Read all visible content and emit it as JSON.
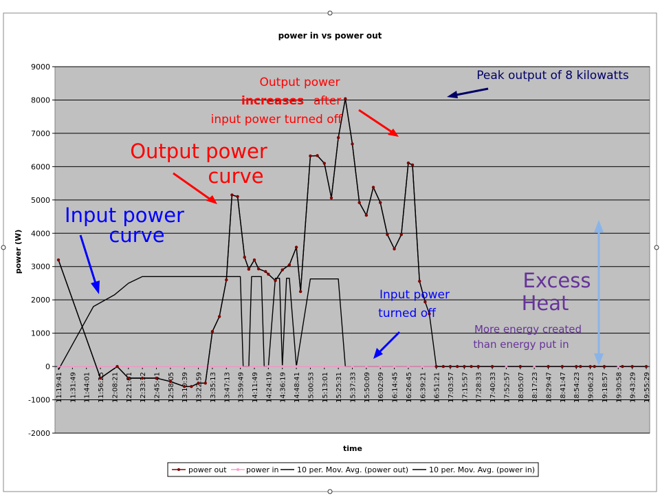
{
  "chart_data": {
    "type": "line",
    "title": "power in vs power out",
    "xlabel": "time",
    "ylabel": "power (W)",
    "ylim": [
      -2000,
      9000
    ],
    "yticks": [
      -2000,
      -1000,
      0,
      1000,
      2000,
      3000,
      4000,
      5000,
      6000,
      7000,
      8000,
      9000
    ],
    "grid": true,
    "legend_position": "bottom",
    "x_tick_labels": [
      "11:19:41",
      "11:31:49",
      "11:44:01",
      "11:56:25",
      "12:08:21",
      "12:21:01",
      "12:33:12",
      "12:45:41",
      "12:58:05",
      "13:10:39",
      "13:22:59",
      "13:35:13",
      "13:47:13",
      "13:59:49",
      "14:11:49",
      "14:24:19",
      "14:36:19",
      "14:48:41",
      "15:00:53",
      "15:13:01",
      "15:25:31",
      "15:37:33",
      "15:50:09",
      "16:02:09",
      "16:14:45",
      "16:26:45",
      "16:39:21",
      "16:51:21",
      "17:03:57",
      "17:15:57",
      "17:28:33",
      "17:40:33",
      "17:52:57",
      "18:05:07",
      "18:17:23",
      "18:29:47",
      "18:41:47",
      "18:54:23",
      "19:06:23",
      "19:18:57",
      "19:30:58",
      "19:43:29",
      "19:55:29"
    ],
    "series": [
      {
        "name": "power out",
        "color": "#800000",
        "marker": "circle",
        "x": [
          0,
          3,
          4.2,
          5,
          6,
          7,
          8,
          9,
          9.5,
          10,
          10.5,
          11,
          11.5,
          12,
          12.4,
          12.8,
          13.3,
          13.6,
          14,
          14.3,
          14.8,
          15,
          15.5,
          16,
          16.5,
          17,
          17.3,
          18,
          18.5,
          19,
          19.5,
          20,
          20.5,
          21,
          21.5,
          22,
          22.5,
          23,
          23.5,
          24,
          24.5,
          25,
          25.3,
          25.8,
          26.2,
          26.5,
          27,
          27.5,
          28,
          28.5,
          29,
          29.5,
          30,
          31,
          33,
          35,
          36,
          37,
          37.3,
          38,
          38.3,
          39,
          40.3,
          41,
          42
        ],
        "values": [
          3200,
          -350,
          0,
          -350,
          -350,
          -350,
          -450,
          -600,
          -600,
          -500,
          -500,
          1050,
          1500,
          2600,
          5150,
          5100,
          3280,
          2920,
          3200,
          2930,
          2850,
          2770,
          2580,
          2900,
          3050,
          3580,
          2250,
          6320,
          6330,
          6100,
          5060,
          6870,
          8040,
          6680,
          4920,
          4540,
          5380,
          4920,
          3960,
          3530,
          3960,
          6110,
          6050,
          2560,
          1940,
          1580,
          0,
          0,
          0,
          0,
          0,
          0,
          0,
          0,
          0,
          0,
          0,
          0,
          0,
          0,
          0,
          0,
          0,
          0,
          0
        ]
      },
      {
        "name": "power in",
        "color": "#ff99cc",
        "marker": "circle",
        "x": [
          0,
          1,
          2,
          3,
          4,
          5,
          6,
          7,
          8,
          9,
          10,
          11,
          12,
          13,
          14,
          15,
          16,
          17,
          18,
          19,
          20,
          21,
          22,
          23,
          24,
          25,
          26,
          27,
          28,
          29,
          30,
          31,
          32,
          33,
          34,
          35,
          36,
          37,
          38,
          39,
          40,
          41,
          42
        ],
        "values": [
          0,
          0,
          0,
          0,
          0,
          0,
          0,
          0,
          0,
          0,
          0,
          0,
          0,
          0,
          0,
          0,
          0,
          0,
          0,
          0,
          0,
          0,
          0,
          0,
          0,
          0,
          0,
          0,
          0,
          0,
          0,
          0,
          0,
          0,
          0,
          0,
          0,
          0,
          0,
          0,
          0,
          0,
          0
        ]
      },
      {
        "name": "10 per. Mov. Avg. (power out)",
        "color": "#000000",
        "marker": "none",
        "x": [
          0,
          3,
          4.2,
          5,
          6,
          7,
          8,
          9,
          9.5,
          10,
          10.5,
          11,
          11.5,
          12,
          12.4,
          12.8,
          13.3,
          13.6,
          14,
          14.3,
          14.8,
          15,
          15.5,
          16,
          16.5,
          17,
          17.3,
          18,
          18.5,
          19,
          19.5,
          20,
          20.5,
          21,
          21.5,
          22,
          22.5,
          23,
          23.5,
          24,
          24.5,
          25,
          25.3,
          25.8,
          26.2
        ],
        "values": [
          3200,
          -350,
          0,
          -350,
          -350,
          -350,
          -450,
          -600,
          -600,
          -500,
          -500,
          1050,
          1500,
          2600,
          5150,
          5100,
          3280,
          2920,
          3200,
          2930,
          2850,
          2770,
          2580,
          2900,
          3050,
          3580,
          2250,
          6320,
          6330,
          6100,
          5060,
          6870,
          8040,
          6680,
          4920,
          4540,
          5380,
          4920,
          3960,
          3530,
          3960,
          6110,
          6050,
          2560,
          1940
        ]
      },
      {
        "name": "10 per. Mov. Avg. (power in)",
        "color": "#000000",
        "marker": "none",
        "x": [
          0,
          2.5,
          4,
          5,
          6,
          7,
          8,
          9,
          10,
          11,
          12,
          13,
          13.2,
          13.4,
          13.6,
          13.8,
          14,
          14.5,
          14.7,
          15,
          15.5,
          15.8,
          16,
          16.3,
          16.5,
          17,
          18,
          18.3,
          18.6,
          20,
          20.5,
          21,
          21.5,
          22,
          42
        ],
        "values": [
          -100,
          1800,
          2150,
          2500,
          2700,
          2700,
          2700,
          2700,
          2700,
          2700,
          2700,
          2700,
          0,
          0,
          0,
          2700,
          2700,
          2700,
          0,
          0,
          2650,
          2650,
          0,
          2650,
          2650,
          0,
          2630,
          2630,
          2630,
          2630,
          0,
          0,
          0,
          0,
          0
        ]
      }
    ],
    "annotations": [
      {
        "text": "Output power",
        "color": "#ff0000"
      },
      {
        "text": "curve",
        "color": "#ff0000"
      },
      {
        "text": "Input power",
        "color": "#0000ff"
      },
      {
        "text": "curve",
        "color": "#0000ff"
      },
      {
        "text": "Output power",
        "color": "#ff0000"
      },
      {
        "text": "increases",
        "color": "#ff0000"
      },
      {
        "text": "after",
        "color": "#ff0000"
      },
      {
        "text": "input power turned off",
        "color": "#ff0000"
      },
      {
        "text": "Peak output of 8 kilowatts",
        "color": "#000066"
      },
      {
        "text": "Input power",
        "color": "#0000ff"
      },
      {
        "text": "turned off",
        "color": "#0000ff"
      },
      {
        "text": "Excess",
        "color": "#663399"
      },
      {
        "text": "Heat",
        "color": "#663399"
      },
      {
        "text": "More energy created",
        "color": "#663399"
      },
      {
        "text": "than energy put in",
        "color": "#663399"
      }
    ]
  }
}
